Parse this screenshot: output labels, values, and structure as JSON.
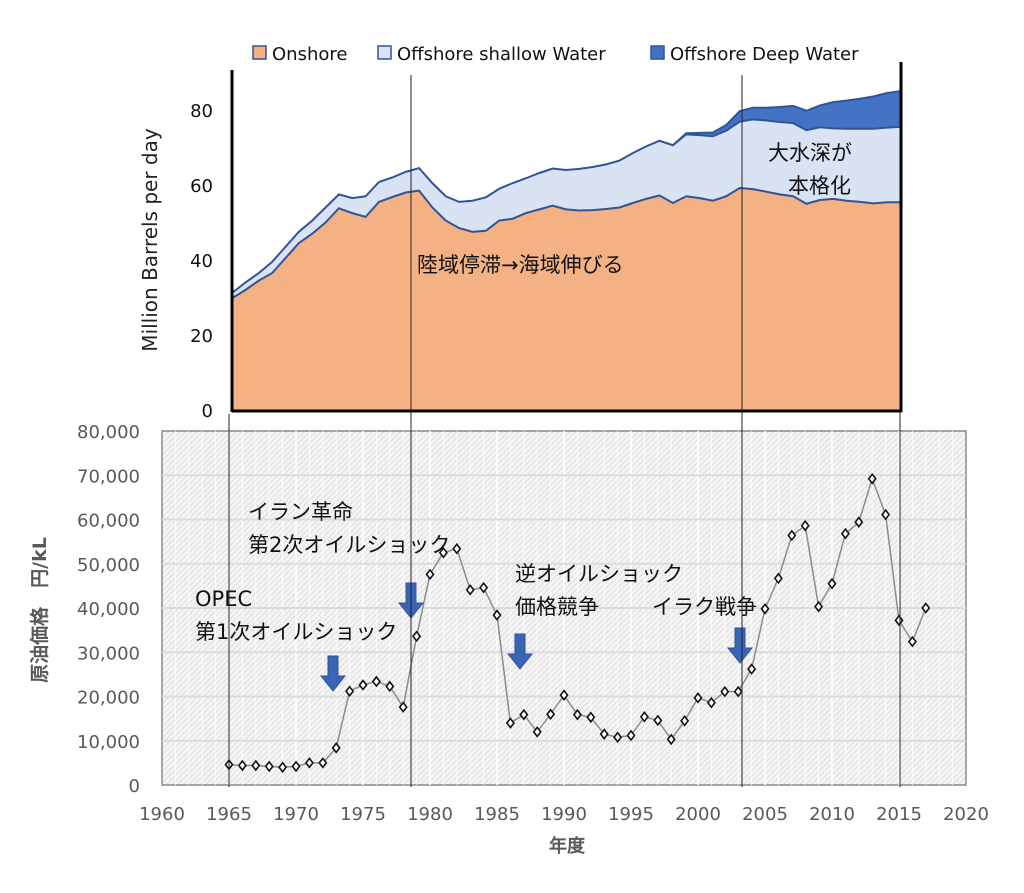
{
  "colors": {
    "onshore": "#F4B183",
    "shallow": "#DAE3F3",
    "deep": "#4472C4",
    "outline": "#2F5597",
    "arrow": "#3A64B4",
    "price_line": "#8C8C8C"
  },
  "chart_data": [
    {
      "type": "area",
      "stacked": true,
      "ylabel": "Million Barrels per day",
      "ylim": [
        0,
        90
      ],
      "yticks": [
        0,
        20,
        40,
        60,
        80
      ],
      "xlim": [
        1965,
        2015
      ],
      "legend_position": "top",
      "x": [
        1965,
        1966,
        1967,
        1968,
        1969,
        1970,
        1971,
        1972,
        1973,
        1974,
        1975,
        1976,
        1977,
        1978,
        1979,
        1980,
        1981,
        1982,
        1983,
        1984,
        1985,
        1986,
        1987,
        1988,
        1989,
        1990,
        1991,
        1992,
        1993,
        1994,
        1995,
        1996,
        1997,
        1998,
        1999,
        2000,
        2001,
        2002,
        2003,
        2004,
        2005,
        2006,
        2007,
        2008,
        2009,
        2010,
        2011,
        2012,
        2013,
        2014,
        2015
      ],
      "series": [
        {
          "name": "Onshore",
          "values": [
            29.8,
            32,
            34.5,
            36.5,
            40.5,
            44.5,
            47,
            50,
            53.8,
            52.5,
            51.5,
            55.5,
            56.8,
            58,
            58.5,
            54,
            50.5,
            48.5,
            47.5,
            47.8,
            50.5,
            51,
            52.5,
            53.5,
            54.5,
            53.5,
            53.2,
            53.3,
            53.6,
            54,
            55.2,
            56.3,
            57.2,
            55.2,
            57,
            56.5,
            55.8,
            57,
            59.2,
            58.9,
            58.2,
            57.5,
            57,
            55,
            56,
            56.3,
            55.8,
            55.5,
            55.1,
            55.4,
            55.4
          ]
        },
        {
          "name": "Offshore shallow Water",
          "values": [
            1.4,
            2,
            2,
            3,
            3,
            3,
            3.5,
            4,
            3.7,
            4,
            5.5,
            5.3,
            5.2,
            5.5,
            6,
            6.5,
            6.5,
            7,
            8.3,
            8.9,
            8.5,
            9.5,
            9.3,
            9.7,
            9.9,
            10.5,
            11.1,
            11.5,
            11.9,
            12.5,
            13.3,
            14,
            14.6,
            15.4,
            16.5,
            16.8,
            17.2,
            17.5,
            17.7,
            18.6,
            19,
            19.3,
            19.5,
            19.6,
            19.4,
            18.8,
            19.2,
            19.5,
            19.9,
            19.9,
            20.1
          ]
        },
        {
          "name": "Offshore Deep Water",
          "values": [
            0,
            0,
            0,
            0,
            0,
            0,
            0,
            0,
            0,
            0,
            0,
            0,
            0,
            0,
            0,
            0,
            0,
            0,
            0,
            0,
            0,
            0,
            0,
            0,
            0,
            0,
            0,
            0,
            0,
            0,
            0,
            0,
            0,
            0,
            0.3,
            0.6,
            1,
            1.5,
            2.8,
            3.1,
            3.4,
            4,
            4.6,
            5.2,
            5.8,
            7,
            7.5,
            8,
            8.6,
            9.2,
            9.5
          ]
        }
      ],
      "annotations": [
        "陸域停滞→海域伸びる",
        "大水深が",
        "本格化"
      ]
    },
    {
      "type": "line",
      "xlabel": "年度",
      "ylabel": "原油価格　円/kL",
      "xlim": [
        1960,
        2020
      ],
      "ylim": [
        0,
        80000
      ],
      "grid": true,
      "xticks": [
        "1960",
        "1965",
        "1970",
        "1975",
        "1980",
        "1985",
        "1990",
        "1995",
        "2000",
        "2005",
        "2010",
        "2015",
        "2020"
      ],
      "yticks": [
        "0",
        "10,000",
        "20,000",
        "30,000",
        "40,000",
        "50,000",
        "60,000",
        "70,000",
        "80,000"
      ],
      "x": [
        1965,
        1966,
        1967,
        1968,
        1969,
        1970,
        1971,
        1972,
        1973,
        1974,
        1975,
        1976,
        1977,
        1978,
        1979,
        1980,
        1981,
        1982,
        1983,
        1984,
        1985,
        1986,
        1987,
        1988,
        1989,
        1990,
        1991,
        1992,
        1993,
        1994,
        1995,
        1996,
        1997,
        1998,
        1999,
        2000,
        2001,
        2002,
        2003,
        2004,
        2005,
        2006,
        2007,
        2008,
        2009,
        2010,
        2011,
        2012,
        2013,
        2014,
        2015,
        2016,
        2017
      ],
      "values": [
        4600,
        4400,
        4400,
        4200,
        4000,
        4200,
        5000,
        5000,
        8400,
        21200,
        22600,
        23400,
        22300,
        17600,
        33600,
        47600,
        52500,
        53400,
        44100,
        44600,
        38400,
        14000,
        15900,
        12000,
        16000,
        20300,
        15900,
        15300,
        11500,
        10800,
        11200,
        15400,
        14600,
        10300,
        14500,
        19700,
        18600,
        21100,
        21100,
        26200,
        39800,
        46700,
        56400,
        58600,
        40300,
        45500,
        56800,
        59400,
        69200,
        61100,
        37200,
        32400,
        40000
      ],
      "annotations": {
        "opec_1": "OPEC",
        "opec_2": "第1次オイルショック",
        "iran_1": "イラン革命",
        "iran_2": "第2次オイルショック",
        "reverse_1": "逆オイルショック",
        "reverse_2": "価格競争",
        "iraq": "イラク戦争"
      }
    }
  ]
}
